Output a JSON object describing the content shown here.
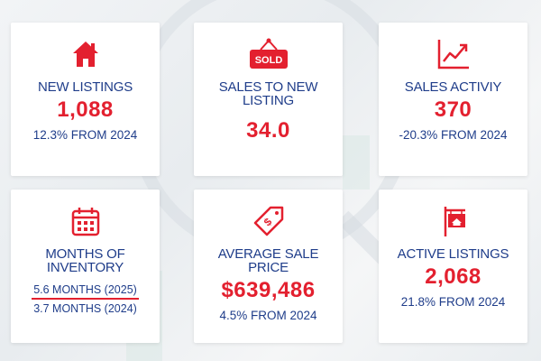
{
  "colors": {
    "accent_red": "#e3202f",
    "text_navy": "#1f3d8a",
    "card_bg": "#ffffff"
  },
  "cards": [
    {
      "icon": "house-icon",
      "title": "NEW LISTINGS",
      "value": "1,088",
      "sub": "12.3% FROM 2024"
    },
    {
      "icon": "sold-sign-icon",
      "icon_text": "SOLD",
      "title_line1": "SALES TO NEW",
      "title_line2": "LISTING",
      "value": "34.0"
    },
    {
      "icon": "trending-up-chart-icon",
      "title": "SALES ACTIVIY",
      "value": "370",
      "sub": "-20.3% FROM 2024"
    },
    {
      "icon": "calendar-icon",
      "title_line1": "MONTHS OF",
      "title_line2": "INVENTORY",
      "line1": "5.6 MONTHS (2025)",
      "line2": "3.7 MONTHS (2024)"
    },
    {
      "icon": "price-tag-icon",
      "title_line1": "AVERAGE SALE",
      "title_line2": "PRICE",
      "value": "$639,486",
      "sub": "4.5% FROM 2024"
    },
    {
      "icon": "for-sale-sign-icon",
      "title": "ACTIVE LISTINGS",
      "value": "2,068",
      "sub": "21.8% FROM 2024"
    }
  ]
}
